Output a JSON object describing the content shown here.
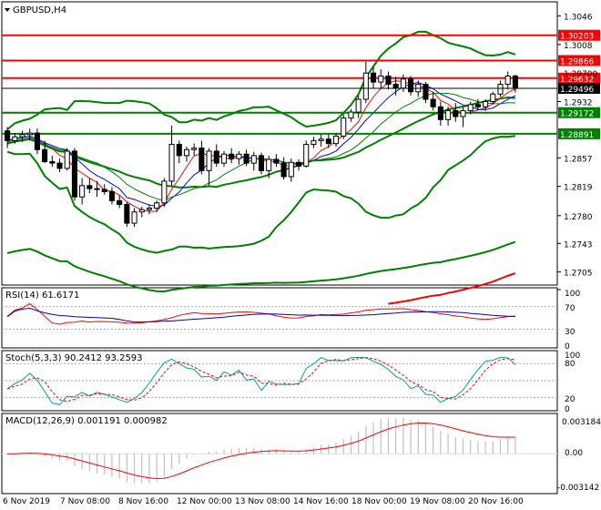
{
  "window": {
    "title": "GBPUSD,H4",
    "menu_icon": "triangle-down-icon"
  },
  "price_panel": {
    "scale": [
      1.3046,
      1.3008,
      1.2932,
      1.2857,
      1.2819,
      1.278,
      1.2743,
      1.2705
    ],
    "hlines": [
      {
        "price": 1.30203,
        "label": "1.30203",
        "color": "#ff0000"
      },
      {
        "price": 1.29866,
        "label": "1.29866",
        "color": "#ff0000"
      },
      {
        "price": 1.29632,
        "label": "1.29632",
        "color": "#ff0000"
      },
      {
        "price": 1.29172,
        "label": "1.29172",
        "color": "#008000"
      },
      {
        "price": 1.28891,
        "label": "1.28891",
        "color": "#008000"
      }
    ],
    "current_price": "1.29496",
    "current_price_value": 1.29496,
    "scale_partial_label": "1.29700"
  },
  "rsi_panel": {
    "title": "RSI(14) 61.6171",
    "scale_labels": [
      "100",
      "70",
      "30",
      "0"
    ]
  },
  "stoch_panel": {
    "title": "Stoch(5,3,3) 90.2412 93.2593",
    "scale_labels": [
      "100",
      "80",
      "20",
      "0"
    ]
  },
  "macd_panel": {
    "title": "MACD(12,26,9) 0.001191 0.000982",
    "scale_labels": [
      "0.003184",
      "0.00",
      "-0.003142"
    ]
  },
  "time_axis": [
    "6 Nov 2019",
    "7 Nov 08:00",
    "8 Nov 16:00",
    "12 Nov 00:00",
    "13 Nov 08:00",
    "14 Nov 16:00",
    "18 Nov 00:00",
    "19 Nov 08:00",
    "20 Nov 16:00"
  ],
  "colors": {
    "bull_candle": "#ffffff",
    "bear_candle": "#000000",
    "candle_outline": "#000000",
    "bollinger": "#008000",
    "envelope": "#008000",
    "long_ma": "#ff0000",
    "ma_fast": "#ff0000",
    "ma_slow": "#0000ff",
    "ma_mid": "#008000",
    "rsi": "#ff0000",
    "rsi_signal": "#0000cc",
    "stoch_main": "#00a0a0",
    "stoch_signal": "#ff0000",
    "macd_hist": "#c0c0c0",
    "macd_signal": "#ff0000",
    "current_price_badge": "#000000"
  },
  "chart_data": {
    "type": "candlestick",
    "title": "GBPUSD,H4",
    "series": [
      {
        "name": "GBPUSD",
        "values": [
          [
            1.2893,
            1.2898,
            1.287,
            1.288
          ],
          [
            1.288,
            1.289,
            1.2876,
            1.2885
          ],
          [
            1.2885,
            1.2893,
            1.2878,
            1.2888
          ],
          [
            1.2888,
            1.2896,
            1.288,
            1.289
          ],
          [
            1.289,
            1.2896,
            1.2862,
            1.2868
          ],
          [
            1.2868,
            1.288,
            1.285,
            1.2852
          ],
          [
            1.2852,
            1.286,
            1.2845,
            1.285
          ],
          [
            1.285,
            1.2856,
            1.2838,
            1.2843
          ],
          [
            1.2843,
            1.287,
            1.284,
            1.2866
          ],
          [
            1.2866,
            1.287,
            1.28,
            1.2805
          ],
          [
            1.2805,
            1.283,
            1.2795,
            1.282
          ],
          [
            1.282,
            1.283,
            1.281,
            1.2816
          ],
          [
            1.2816,
            1.2826,
            1.2805,
            1.2815
          ],
          [
            1.2815,
            1.2822,
            1.2808,
            1.2812
          ],
          [
            1.2812,
            1.2818,
            1.2795,
            1.28
          ],
          [
            1.28,
            1.2807,
            1.279,
            1.2795
          ],
          [
            1.2795,
            1.2798,
            1.2765,
            1.277
          ],
          [
            1.277,
            1.279,
            1.2765,
            1.2785
          ],
          [
            1.2785,
            1.2792,
            1.2778,
            1.2788
          ],
          [
            1.2788,
            1.2795,
            1.2782,
            1.279
          ],
          [
            1.279,
            1.28,
            1.2785,
            1.2797
          ],
          [
            1.2797,
            1.283,
            1.2792,
            1.2826
          ],
          [
            1.2826,
            1.29,
            1.282,
            1.2875
          ],
          [
            1.2875,
            1.288,
            1.285,
            1.286
          ],
          [
            1.286,
            1.2872,
            1.2852,
            1.2868
          ],
          [
            1.2868,
            1.2876,
            1.286,
            1.287
          ],
          [
            1.287,
            1.288,
            1.2835,
            1.284
          ],
          [
            1.284,
            1.287,
            1.282,
            1.2866
          ],
          [
            1.2866,
            1.2875,
            1.2845,
            1.285
          ],
          [
            1.285,
            1.2866,
            1.2845,
            1.2862
          ],
          [
            1.2862,
            1.287,
            1.285,
            1.2856
          ],
          [
            1.2856,
            1.2866,
            1.2848,
            1.2862
          ],
          [
            1.2862,
            1.2868,
            1.2846,
            1.285
          ],
          [
            1.285,
            1.2865,
            1.284,
            1.286
          ],
          [
            1.286,
            1.2864,
            1.2835,
            1.284
          ],
          [
            1.284,
            1.286,
            1.283,
            1.2855
          ],
          [
            1.2855,
            1.2862,
            1.2845,
            1.285
          ],
          [
            1.285,
            1.2858,
            1.2828,
            1.2832
          ],
          [
            1.2832,
            1.2856,
            1.2825,
            1.2851
          ],
          [
            1.2851,
            1.2855,
            1.284,
            1.2846
          ],
          [
            1.2846,
            1.288,
            1.2844,
            1.2875
          ],
          [
            1.2875,
            1.2885,
            1.287,
            1.288
          ],
          [
            1.288,
            1.2888,
            1.2872,
            1.2882
          ],
          [
            1.2882,
            1.2888,
            1.287,
            1.2876
          ],
          [
            1.2876,
            1.289,
            1.2872,
            1.2886
          ],
          [
            1.2886,
            1.2915,
            1.2882,
            1.291
          ],
          [
            1.291,
            1.2922,
            1.2905,
            1.2918
          ],
          [
            1.2918,
            1.294,
            1.291,
            1.2935
          ],
          [
            1.2935,
            1.2985,
            1.293,
            1.297
          ],
          [
            1.297,
            1.2978,
            1.295,
            1.2958
          ],
          [
            1.2958,
            1.2975,
            1.295,
            1.2966
          ],
          [
            1.2966,
            1.2972,
            1.2948,
            1.2955
          ],
          [
            1.2955,
            1.2965,
            1.294,
            1.295
          ],
          [
            1.295,
            1.2968,
            1.2945,
            1.2962
          ],
          [
            1.2962,
            1.2966,
            1.294,
            1.2945
          ],
          [
            1.2945,
            1.296,
            1.2938,
            1.2955
          ],
          [
            1.2955,
            1.2958,
            1.293,
            1.2935
          ],
          [
            1.2935,
            1.2945,
            1.292,
            1.2925
          ],
          [
            1.2925,
            1.2932,
            1.29,
            1.2908
          ],
          [
            1.2908,
            1.2925,
            1.29,
            1.292
          ],
          [
            1.292,
            1.293,
            1.2905,
            1.2912
          ],
          [
            1.2912,
            1.2925,
            1.2898,
            1.292
          ],
          [
            1.292,
            1.2932,
            1.2915,
            1.2928
          ],
          [
            1.2928,
            1.2935,
            1.292,
            1.2925
          ],
          [
            1.2925,
            1.2935,
            1.292,
            1.2932
          ],
          [
            1.2932,
            1.2945,
            1.2928,
            1.2942
          ],
          [
            1.2942,
            1.296,
            1.2938,
            1.2955
          ],
          [
            1.2955,
            1.2972,
            1.2948,
            1.2966
          ],
          [
            1.2966,
            1.2968,
            1.2944,
            1.295
          ]
        ]
      }
    ],
    "ylim": [
      1.269,
      1.306
    ]
  }
}
